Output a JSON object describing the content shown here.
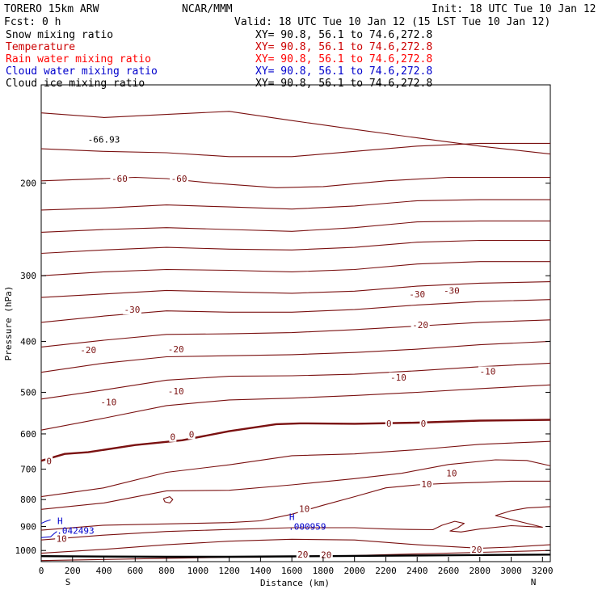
{
  "header": {
    "model": "TORERO  15km ARW",
    "center": "NCAR/MMM",
    "init": "Init: 18 UTC Tue 10 Jan 12",
    "fcst": "Fcst:    0 h",
    "valid": "Valid: 18 UTC Tue 10 Jan 12 (15 LST Tue 10 Jan 12)"
  },
  "fields": [
    {
      "name": "Snow mixing ratio",
      "xy": "XY=  90.8, 56.1 to  74.6,272.8",
      "color": "#000000"
    },
    {
      "name": "Temperature",
      "xy": "XY=  90.8, 56.1 to  74.6,272.8",
      "color": "#cc0000"
    },
    {
      "name": "Rain water mixing ratio",
      "xy": "XY=  90.8, 56.1 to  74.6,272.8",
      "color": "#ff0000"
    },
    {
      "name": "Cloud water mixing ratio",
      "xy": "XY=  90.8, 56.1 to  74.6,272.8",
      "color": "#0000cc"
    },
    {
      "name": "Cloud ice mixing ratio",
      "xy": "XY=  90.8, 56.1 to  74.6,272.8",
      "color": "#000000"
    }
  ],
  "chart_data": {
    "type": "line",
    "xlabel": "Distance (km)",
    "ylabel": "Pressure (hPa)",
    "xlim": [
      0,
      3250
    ],
    "ylim": [
      1050,
      130
    ],
    "y_scale": "log",
    "grid": false,
    "x_ticks": [
      0,
      200,
      400,
      600,
      800,
      1000,
      1200,
      1400,
      1600,
      1800,
      2000,
      2200,
      2400,
      2600,
      2800,
      3000,
      3200
    ],
    "y_ticks": [
      200,
      300,
      400,
      500,
      600,
      700,
      800,
      900,
      1000
    ],
    "end_labels": {
      "left": "S",
      "right": "N"
    },
    "contour_color": "#7a1010",
    "series": [
      {
        "pts": [
          [
            0,
            147
          ],
          [
            400,
            150
          ],
          [
            800,
            148
          ],
          [
            1200,
            146
          ],
          [
            1600,
            152
          ],
          [
            2000,
            158
          ],
          [
            2400,
            164
          ],
          [
            2800,
            170
          ],
          [
            3250,
            176
          ]
        ]
      },
      {
        "pts": [
          [
            0,
            172
          ],
          [
            400,
            174
          ],
          [
            800,
            175
          ],
          [
            1200,
            178
          ],
          [
            1600,
            178
          ],
          [
            2000,
            174
          ],
          [
            2400,
            170
          ],
          [
            2800,
            168
          ],
          [
            3250,
            168
          ]
        ]
      },
      {
        "pts": [
          [
            0,
            198
          ],
          [
            400,
            196
          ],
          [
            600,
            195
          ],
          [
            800,
            196
          ],
          [
            1100,
            200
          ],
          [
            1500,
            204
          ],
          [
            1800,
            203
          ],
          [
            2200,
            198
          ],
          [
            2600,
            195
          ],
          [
            3250,
            195
          ]
        ]
      },
      {
        "pts": [
          [
            0,
            225
          ],
          [
            400,
            223
          ],
          [
            800,
            220
          ],
          [
            1200,
            222
          ],
          [
            1600,
            224
          ],
          [
            2000,
            221
          ],
          [
            2400,
            216
          ],
          [
            2800,
            215
          ],
          [
            3250,
            215
          ]
        ]
      },
      {
        "pts": [
          [
            0,
            248
          ],
          [
            400,
            245
          ],
          [
            800,
            243
          ],
          [
            1200,
            245
          ],
          [
            1600,
            247
          ],
          [
            2000,
            243
          ],
          [
            2400,
            237
          ],
          [
            2800,
            236
          ],
          [
            3250,
            236
          ]
        ]
      },
      {
        "pts": [
          [
            0,
            272
          ],
          [
            400,
            268
          ],
          [
            800,
            265
          ],
          [
            1200,
            267
          ],
          [
            1600,
            268
          ],
          [
            2000,
            265
          ],
          [
            2400,
            259
          ],
          [
            2800,
            257
          ],
          [
            3250,
            257
          ]
        ]
      },
      {
        "pts": [
          [
            0,
            300
          ],
          [
            400,
            295
          ],
          [
            800,
            292
          ],
          [
            1200,
            293
          ],
          [
            1600,
            295
          ],
          [
            2000,
            292
          ],
          [
            2400,
            285
          ],
          [
            2800,
            282
          ],
          [
            3250,
            282
          ]
        ]
      },
      {
        "pts": [
          [
            0,
            330
          ],
          [
            400,
            325
          ],
          [
            800,
            320
          ],
          [
            1200,
            322
          ],
          [
            1600,
            324
          ],
          [
            2000,
            321
          ],
          [
            2400,
            314
          ],
          [
            2800,
            310
          ],
          [
            3250,
            308
          ]
        ]
      },
      {
        "pts": [
          [
            0,
            368
          ],
          [
            400,
            358
          ],
          [
            800,
            350
          ],
          [
            1200,
            352
          ],
          [
            1600,
            352
          ],
          [
            2000,
            348
          ],
          [
            2400,
            341
          ],
          [
            2800,
            336
          ],
          [
            3250,
            333
          ]
        ]
      },
      {
        "pts": [
          [
            0,
            410
          ],
          [
            400,
            398
          ],
          [
            800,
            388
          ],
          [
            1200,
            387
          ],
          [
            1600,
            385
          ],
          [
            2000,
            380
          ],
          [
            2400,
            374
          ],
          [
            2800,
            368
          ],
          [
            3250,
            364
          ]
        ]
      },
      {
        "pts": [
          [
            0,
            458
          ],
          [
            400,
            440
          ],
          [
            800,
            428
          ],
          [
            1200,
            426
          ],
          [
            1600,
            424
          ],
          [
            2000,
            420
          ],
          [
            2400,
            414
          ],
          [
            2800,
            406
          ],
          [
            3250,
            400
          ]
        ]
      },
      {
        "pts": [
          [
            0,
            515
          ],
          [
            400,
            495
          ],
          [
            800,
            474
          ],
          [
            1200,
            466
          ],
          [
            1600,
            465
          ],
          [
            2000,
            462
          ],
          [
            2400,
            455
          ],
          [
            2800,
            447
          ],
          [
            3250,
            440
          ]
        ]
      },
      {
        "pts": [
          [
            0,
            590
          ],
          [
            400,
            560
          ],
          [
            800,
            530
          ],
          [
            1200,
            517
          ],
          [
            1600,
            513
          ],
          [
            2000,
            507
          ],
          [
            2400,
            500
          ],
          [
            2800,
            492
          ],
          [
            3250,
            484
          ]
        ]
      },
      {
        "pts": [
          [
            0,
            675
          ],
          [
            150,
            655
          ],
          [
            300,
            650
          ],
          [
            600,
            630
          ],
          [
            900,
            617
          ],
          [
            1200,
            593
          ],
          [
            1500,
            575
          ],
          [
            1650,
            573
          ],
          [
            2000,
            574
          ],
          [
            2400,
            571
          ],
          [
            2800,
            566
          ],
          [
            3250,
            564
          ]
        ],
        "bold": true
      },
      {
        "pts": [
          [
            0,
            790
          ],
          [
            400,
            760
          ],
          [
            800,
            710
          ],
          [
            1200,
            687
          ],
          [
            1600,
            660
          ],
          [
            2000,
            655
          ],
          [
            2400,
            643
          ],
          [
            2800,
            628
          ],
          [
            3250,
            620
          ]
        ]
      },
      {
        "pts": [
          [
            0,
            835
          ],
          [
            400,
            812
          ],
          [
            800,
            770
          ],
          [
            1200,
            768
          ],
          [
            1600,
            750
          ],
          [
            2000,
            730
          ],
          [
            2300,
            713
          ],
          [
            2600,
            686
          ],
          [
            2900,
            672
          ],
          [
            3100,
            674
          ],
          [
            3250,
            690
          ]
        ]
      },
      {
        "pts": [
          [
            0,
            915
          ],
          [
            400,
            895
          ],
          [
            800,
            890
          ],
          [
            1200,
            885
          ],
          [
            1400,
            878
          ],
          [
            1600,
            853
          ],
          [
            1800,
            820
          ],
          [
            2000,
            790
          ],
          [
            2200,
            760
          ],
          [
            2400,
            750
          ],
          [
            2600,
            745
          ],
          [
            2800,
            742
          ],
          [
            3000,
            738
          ],
          [
            3250,
            738
          ]
        ]
      },
      {
        "pts": [
          [
            0,
            955
          ],
          [
            400,
            935
          ],
          [
            800,
            920
          ],
          [
            1200,
            912
          ],
          [
            1600,
            905
          ],
          [
            2000,
            905
          ],
          [
            2200,
            910
          ],
          [
            2350,
            912
          ],
          [
            2500,
            913
          ],
          [
            2560,
            895
          ],
          [
            2640,
            880
          ],
          [
            2700,
            888
          ],
          [
            2660,
            905
          ],
          [
            2610,
            918
          ],
          [
            2680,
            922
          ],
          [
            2800,
            910
          ],
          [
            3000,
            897
          ],
          [
            3200,
            903
          ],
          [
            2900,
            858
          ],
          [
            3000,
            840
          ],
          [
            3100,
            830
          ],
          [
            3250,
            825
          ]
        ]
      },
      {
        "pts": [
          [
            0,
            1012
          ],
          [
            400,
            995
          ],
          [
            800,
            975
          ],
          [
            1200,
            960
          ],
          [
            1600,
            952
          ],
          [
            2000,
            955
          ],
          [
            2400,
            975
          ],
          [
            2800,
            990
          ],
          [
            3000,
            985
          ],
          [
            3250,
            975
          ]
        ]
      },
      {
        "pts": [
          [
            0,
            1045
          ],
          [
            400,
            1040
          ],
          [
            800,
            1035
          ],
          [
            1200,
            1030
          ],
          [
            1400,
            1030
          ],
          [
            1600,
            1025
          ],
          [
            2000,
            1022
          ],
          [
            2400,
            1015
          ],
          [
            2800,
            1008
          ],
          [
            3250,
            1000
          ]
        ]
      },
      {
        "pts": [
          [
            780,
            797
          ],
          [
            820,
            790
          ],
          [
            840,
            800
          ],
          [
            820,
            812
          ],
          [
            790,
            808
          ],
          [
            780,
            797
          ]
        ]
      }
    ],
    "terrain": {
      "color": "#000000",
      "pts": [
        [
          0,
          1025
        ],
        [
          400,
          1027
        ],
        [
          800,
          1028
        ],
        [
          1200,
          1028
        ],
        [
          1600,
          1026
        ],
        [
          2000,
          1024
        ],
        [
          2400,
          1022
        ],
        [
          2800,
          1020
        ],
        [
          3250,
          1018
        ]
      ]
    },
    "contour_labels": [
      {
        "text": "-60",
        "x": 500,
        "y": 196
      },
      {
        "text": "-60",
        "x": 880,
        "y": 196
      },
      {
        "text": "-30",
        "x": 580,
        "y": 348
      },
      {
        "text": "-30",
        "x": 2400,
        "y": 325
      },
      {
        "text": "-30",
        "x": 2620,
        "y": 320
      },
      {
        "text": "-20",
        "x": 300,
        "y": 415
      },
      {
        "text": "-20",
        "x": 860,
        "y": 414
      },
      {
        "text": "-20",
        "x": 2420,
        "y": 372
      },
      {
        "text": "-10",
        "x": 430,
        "y": 522
      },
      {
        "text": "-10",
        "x": 860,
        "y": 497
      },
      {
        "text": "-10",
        "x": 2280,
        "y": 468
      },
      {
        "text": "-10",
        "x": 2850,
        "y": 456
      },
      {
        "text": "0",
        "x": 50,
        "y": 676
      },
      {
        "text": "0",
        "x": 840,
        "y": 608
      },
      {
        "text": "0",
        "x": 960,
        "y": 601
      },
      {
        "text": "0",
        "x": 2220,
        "y": 573
      },
      {
        "text": "0",
        "x": 2440,
        "y": 573
      },
      {
        "text": "10",
        "x": 1680,
        "y": 833
      },
      {
        "text": "10",
        "x": 2460,
        "y": 747
      },
      {
        "text": "10",
        "x": 2620,
        "y": 713
      },
      {
        "text": "10",
        "x": 130,
        "y": 950
      },
      {
        "text": "20",
        "x": 1670,
        "y": 1017
      },
      {
        "text": "20",
        "x": 1820,
        "y": 1018
      },
      {
        "text": "20",
        "x": 2780,
        "y": 995
      }
    ],
    "overlap_label": {
      "text": "-66.93",
      "x": 400,
      "y": 165
    },
    "cloud_water": {
      "color": "#0000cc",
      "marks": [
        {
          "letter": "H",
          "value": ".042493",
          "x": 120,
          "y": 890
        },
        {
          "letter": "H",
          "value": ".000959",
          "x": 1600,
          "y": 875
        }
      ],
      "pts": [
        [
          0,
          888
        ],
        [
          30,
          880
        ],
        [
          60,
          874
        ]
      ],
      "pts2": [
        [
          0,
          945
        ],
        [
          60,
          942
        ],
        [
          80,
          930
        ],
        [
          100,
          920
        ]
      ]
    }
  }
}
